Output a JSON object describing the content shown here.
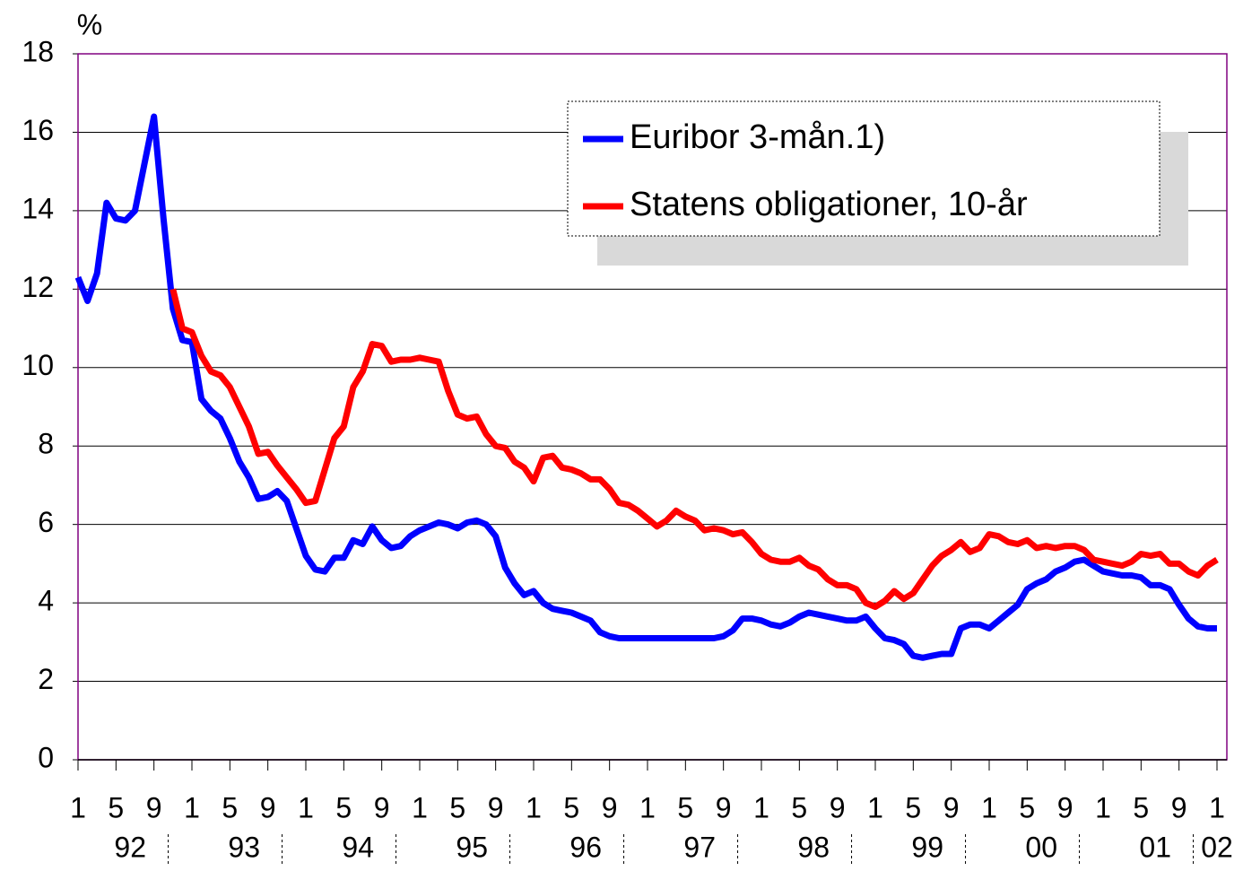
{
  "chart_data": {
    "type": "line",
    "y_unit_label": "%",
    "x": [
      "1992-01",
      "1992-02",
      "1992-03",
      "1992-04",
      "1992-05",
      "1992-06",
      "1992-07",
      "1992-08",
      "1992-09",
      "1992-10",
      "1992-11",
      "1992-12",
      "1993-01",
      "1993-02",
      "1993-03",
      "1993-04",
      "1993-05",
      "1993-06",
      "1993-07",
      "1993-08",
      "1993-09",
      "1993-10",
      "1993-11",
      "1993-12",
      "1994-01",
      "1994-02",
      "1994-03",
      "1994-04",
      "1994-05",
      "1994-06",
      "1994-07",
      "1994-08",
      "1994-09",
      "1994-10",
      "1994-11",
      "1994-12",
      "1995-01",
      "1995-02",
      "1995-03",
      "1995-04",
      "1995-05",
      "1995-06",
      "1995-07",
      "1995-08",
      "1995-09",
      "1995-10",
      "1995-11",
      "1995-12",
      "1996-01",
      "1996-02",
      "1996-03",
      "1996-04",
      "1996-05",
      "1996-06",
      "1996-07",
      "1996-08",
      "1996-09",
      "1996-10",
      "1996-11",
      "1996-12",
      "1997-01",
      "1997-02",
      "1997-03",
      "1997-04",
      "1997-05",
      "1997-06",
      "1997-07",
      "1997-08",
      "1997-09",
      "1997-10",
      "1997-11",
      "1997-12",
      "1998-01",
      "1998-02",
      "1998-03",
      "1998-04",
      "1998-05",
      "1998-06",
      "1998-07",
      "1998-08",
      "1998-09",
      "1998-10",
      "1998-11",
      "1998-12",
      "1999-01",
      "1999-02",
      "1999-03",
      "1999-04",
      "1999-05",
      "1999-06",
      "1999-07",
      "1999-08",
      "1999-09",
      "1999-10",
      "1999-11",
      "1999-12",
      "2000-01",
      "2000-02",
      "2000-03",
      "2000-04",
      "2000-05",
      "2000-06",
      "2000-07",
      "2000-08",
      "2000-09",
      "2000-10",
      "2000-11",
      "2000-12",
      "2001-01",
      "2001-02",
      "2001-03",
      "2001-04",
      "2001-05",
      "2001-06",
      "2001-07",
      "2001-08",
      "2001-09",
      "2001-10",
      "2001-11",
      "2001-12",
      "2002-01"
    ],
    "series": [
      {
        "name": "Euribor 3-mån.1)",
        "color": "#0000ff",
        "values": [
          12.3,
          11.7,
          12.4,
          14.2,
          13.8,
          13.75,
          14.0,
          15.2,
          16.4,
          13.8,
          11.5,
          10.7,
          10.65,
          9.2,
          8.9,
          8.7,
          8.2,
          7.6,
          7.2,
          6.65,
          6.7,
          6.85,
          6.6,
          5.9,
          5.2,
          4.85,
          4.8,
          5.15,
          5.15,
          5.6,
          5.5,
          5.95,
          5.6,
          5.4,
          5.45,
          5.7,
          5.85,
          5.95,
          6.05,
          6.0,
          5.9,
          6.05,
          6.1,
          6.0,
          5.7,
          4.9,
          4.5,
          4.2,
          4.3,
          4.0,
          3.85,
          3.8,
          3.75,
          3.65,
          3.55,
          3.25,
          3.15,
          3.1,
          3.1,
          3.1,
          3.1,
          3.1,
          3.1,
          3.1,
          3.1,
          3.1,
          3.1,
          3.1,
          3.15,
          3.3,
          3.6,
          3.6,
          3.55,
          3.45,
          3.4,
          3.5,
          3.65,
          3.75,
          3.7,
          3.65,
          3.6,
          3.55,
          3.55,
          3.65,
          3.35,
          3.1,
          3.05,
          2.95,
          2.65,
          2.6,
          2.65,
          2.7,
          2.7,
          3.35,
          3.45,
          3.45,
          3.35,
          3.55,
          3.75,
          3.95,
          4.35,
          4.5,
          4.6,
          4.8,
          4.9,
          5.05,
          5.1,
          4.95,
          4.8,
          4.75,
          4.7,
          4.7,
          4.65,
          4.45,
          4.45,
          4.35,
          3.95,
          3.6,
          3.4,
          3.35,
          3.35
        ]
      },
      {
        "name": "Statens obligationer, 10-år",
        "color": "#ff0000",
        "values": [
          null,
          null,
          null,
          null,
          null,
          null,
          null,
          null,
          null,
          null,
          12.0,
          11.0,
          10.9,
          10.3,
          9.9,
          9.8,
          9.5,
          9.0,
          8.5,
          7.8,
          7.85,
          7.5,
          7.2,
          6.9,
          6.55,
          6.6,
          7.4,
          8.2,
          8.5,
          9.5,
          9.9,
          10.6,
          10.55,
          10.15,
          10.2,
          10.2,
          10.25,
          10.2,
          10.15,
          9.4,
          8.8,
          8.7,
          8.75,
          8.3,
          8.0,
          7.95,
          7.6,
          7.45,
          7.1,
          7.7,
          7.75,
          7.45,
          7.4,
          7.3,
          7.15,
          7.15,
          6.9,
          6.55,
          6.5,
          6.35,
          6.15,
          5.95,
          6.1,
          6.35,
          6.2,
          6.1,
          5.85,
          5.9,
          5.85,
          5.75,
          5.8,
          5.55,
          5.25,
          5.1,
          5.05,
          5.05,
          5.15,
          4.95,
          4.85,
          4.6,
          4.45,
          4.45,
          4.35,
          4.0,
          3.9,
          4.05,
          4.3,
          4.1,
          4.25,
          4.6,
          4.95,
          5.2,
          5.35,
          5.55,
          5.3,
          5.4,
          5.75,
          5.7,
          5.55,
          5.5,
          5.6,
          5.4,
          5.45,
          5.4,
          5.45,
          5.45,
          5.35,
          5.1,
          5.05,
          5.0,
          4.95,
          5.05,
          5.25,
          5.2,
          5.25,
          5.0,
          5.0,
          4.8,
          4.7,
          4.95,
          5.1
        ]
      }
    ],
    "ylim": [
      0,
      18
    ],
    "yticks": [
      0,
      2,
      4,
      6,
      8,
      10,
      12,
      14,
      16,
      18
    ],
    "grid": true,
    "legend": "top-right",
    "xticks": [
      {
        "value": "1992-01",
        "label": "1"
      },
      {
        "value": "1992-05",
        "label": "5"
      },
      {
        "value": "1992-09",
        "label": "9"
      },
      {
        "value": "1993-01",
        "label": "1"
      },
      {
        "value": "1993-05",
        "label": "5"
      },
      {
        "value": "1993-09",
        "label": "9"
      },
      {
        "value": "1994-01",
        "label": "1"
      },
      {
        "value": "1994-05",
        "label": "5"
      },
      {
        "value": "1994-09",
        "label": "9"
      },
      {
        "value": "1995-01",
        "label": "1"
      },
      {
        "value": "1995-05",
        "label": "5"
      },
      {
        "value": "1995-09",
        "label": "9"
      },
      {
        "value": "1996-01",
        "label": "1"
      },
      {
        "value": "1996-05",
        "label": "5"
      },
      {
        "value": "1996-09",
        "label": "9"
      },
      {
        "value": "1997-01",
        "label": "1"
      },
      {
        "value": "1997-05",
        "label": "5"
      },
      {
        "value": "1997-09",
        "label": "9"
      },
      {
        "value": "1998-01",
        "label": "1"
      },
      {
        "value": "1998-05",
        "label": "5"
      },
      {
        "value": "1998-09",
        "label": "9"
      },
      {
        "value": "1999-01",
        "label": "1"
      },
      {
        "value": "1999-05",
        "label": "5"
      },
      {
        "value": "1999-09",
        "label": "9"
      },
      {
        "value": "2000-01",
        "label": "1"
      },
      {
        "value": "2000-05",
        "label": "5"
      },
      {
        "value": "2000-09",
        "label": "9"
      },
      {
        "value": "2001-01",
        "label": "1"
      },
      {
        "value": "2001-05",
        "label": "5"
      },
      {
        "value": "2001-09",
        "label": "9"
      },
      {
        "value": "2002-01",
        "label": "1"
      }
    ],
    "year_labels": [
      {
        "value": "1992",
        "label": "92"
      },
      {
        "value": "1993",
        "label": "93"
      },
      {
        "value": "1994",
        "label": "94"
      },
      {
        "value": "1995",
        "label": "95"
      },
      {
        "value": "1996",
        "label": "96"
      },
      {
        "value": "1997",
        "label": "97"
      },
      {
        "value": "1998",
        "label": "98"
      },
      {
        "value": "1999",
        "label": "99"
      },
      {
        "value": "2000",
        "label": "00"
      },
      {
        "value": "2001",
        "label": "01"
      },
      {
        "value": "2002",
        "label": "02"
      }
    ]
  }
}
